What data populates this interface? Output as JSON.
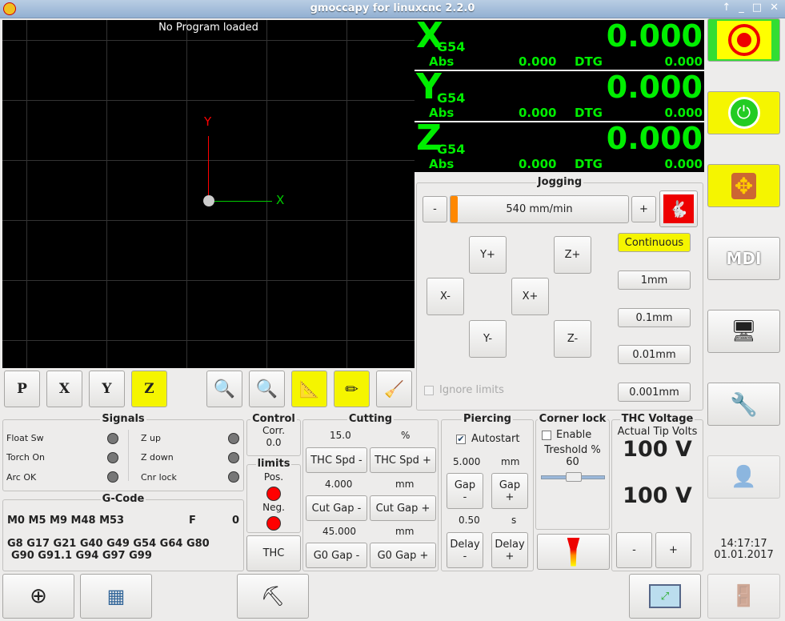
{
  "window": {
    "title": "gmoccapy for linuxcnc  2.2.0"
  },
  "preview": {
    "message": "No Program loaded",
    "axis_x": "X",
    "axis_y": "Y",
    "buttons": [
      "P",
      "X",
      "Y",
      "Z"
    ]
  },
  "dro": [
    {
      "axis": "X",
      "coord": "G54",
      "value": "0.000",
      "abs_label": "Abs",
      "abs": "0.000",
      "dtg_label": "DTG",
      "dtg": "0.000"
    },
    {
      "axis": "Y",
      "coord": "G54",
      "value": "0.000",
      "abs_label": "Abs",
      "abs": "0.000",
      "dtg_label": "DTG",
      "dtg": "0.000"
    },
    {
      "axis": "Z",
      "coord": "G54",
      "value": "0.000",
      "abs_label": "Abs",
      "abs": "0.000",
      "dtg_label": "DTG",
      "dtg": "0.000"
    }
  ],
  "jogging": {
    "title": "Jogging",
    "minus": "-",
    "plus": "+",
    "speed": "540 mm/min",
    "speed_fraction": 0.01,
    "keys": {
      "yplus": "Y+",
      "zplus": "Z+",
      "xminus": "X-",
      "xplus": "X+",
      "yminus": "Y-",
      "zminus": "Z-"
    },
    "increments": [
      "Continuous",
      "1mm",
      "0.1mm",
      "0.01mm",
      "0.001mm"
    ],
    "ignore_limits": "Ignore limits"
  },
  "signals": {
    "title": "Signals",
    "left": [
      "Float Sw",
      "Torch On",
      "Arc OK"
    ],
    "right": [
      "Z up",
      "Z down",
      "Cnr lock"
    ]
  },
  "gcode": {
    "title": "G-Code",
    "mcodes": "M0 M5 M9 M48 M53",
    "f_label": "F",
    "f_value": "0",
    "gcodes1": "G8 G17 G21 G40 G49 G54 G64 G80",
    "gcodes2": "G90 G91.1 G94 G97 G99"
  },
  "control": {
    "title": "Control",
    "corr_label": "Corr.",
    "corr": "0.0"
  },
  "limits": {
    "title": "limits",
    "pos": "Pos.",
    "neg": "Neg.",
    "thc": "THC"
  },
  "cutting": {
    "title": "Cutting",
    "spd_val": "15.0",
    "spd_unit": "%",
    "spd_minus": "THC Spd -",
    "spd_plus": "THC Spd +",
    "gap_val": "4.000",
    "gap_unit": "mm",
    "gap_minus": "Cut Gap -",
    "gap_plus": "Cut Gap +",
    "g0_val": "45.000",
    "g0_unit": "mm",
    "g0_minus": "G0 Gap -",
    "g0_plus": "G0 Gap +"
  },
  "piercing": {
    "title": "Piercing",
    "autostart": "Autostart",
    "gap_val": "5.000",
    "gap_unit": "mm",
    "gap_minus": "Gap\n-",
    "gap_plus": "Gap\n+",
    "delay_val": "0.50",
    "delay_unit": "s",
    "delay_minus": "Delay\n-",
    "delay_plus": "Delay\n+"
  },
  "corner_lock": {
    "title": "Corner lock",
    "enable": "Enable",
    "threshold_label": "Treshold %",
    "threshold": "60"
  },
  "thc_voltage": {
    "title": "THC Voltage",
    "actual_label": "Actual Tip Volts",
    "actual": "100 V",
    "set": "100 V",
    "minus": "-",
    "plus": "+"
  },
  "clock": {
    "time": "14:17:17",
    "date": "01.01.2017"
  },
  "right_buttons": {
    "mdi": "MDI"
  },
  "colors": {
    "dro_green": "#00ee00",
    "estop_green": "#33dd33",
    "active_yellow": "#f5f500"
  }
}
